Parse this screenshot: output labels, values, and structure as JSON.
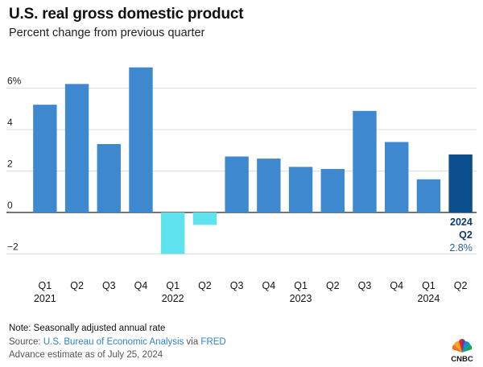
{
  "chart_data": {
    "type": "bar",
    "title": "U.S. real gross domestic product",
    "subtitle": "Percent change from previous quarter",
    "categories": [
      "Q1",
      "Q2",
      "Q3",
      "Q4",
      "Q1",
      "Q2",
      "Q3",
      "Q4",
      "Q1",
      "Q2",
      "Q3",
      "Q4",
      "Q1",
      "Q2"
    ],
    "year_labels": [
      {
        "label": "2021",
        "index": 0
      },
      {
        "label": "2022",
        "index": 4
      },
      {
        "label": "2023",
        "index": 8
      },
      {
        "label": "2024",
        "index": 12
      }
    ],
    "values": [
      5.2,
      6.2,
      3.3,
      7.0,
      -2.0,
      -0.6,
      2.7,
      2.6,
      2.2,
      2.1,
      4.9,
      3.4,
      1.6,
      2.8
    ],
    "ylim": [
      -2.8,
      7.2
    ],
    "yticks": [
      {
        "value": 6,
        "label": "6%"
      },
      {
        "value": 4,
        "label": "4"
      },
      {
        "value": 2,
        "label": "2"
      },
      {
        "value": 0,
        "label": "0"
      },
      {
        "value": -2,
        "label": "−2"
      }
    ],
    "grid": true,
    "colors": {
      "positive": "#3d88ce",
      "negative": "#5ee3ee",
      "highlight": "#0b4f8c"
    },
    "highlight": {
      "index": 13,
      "year": "2024",
      "quarter": "Q2",
      "value_label": "2.8%"
    }
  },
  "footer": {
    "note": "Note: Seasonally adjusted annual rate",
    "source_prefix": "Source: ",
    "source_link_1": "U.S. Bureau of Economic Analysis",
    "source_mid": " via ",
    "source_link_2": "FRED",
    "advance": "Advance estimate as of July 25, 2024"
  },
  "logo": {
    "text": "CNBC",
    "icon": "nbc-peacock-icon"
  }
}
